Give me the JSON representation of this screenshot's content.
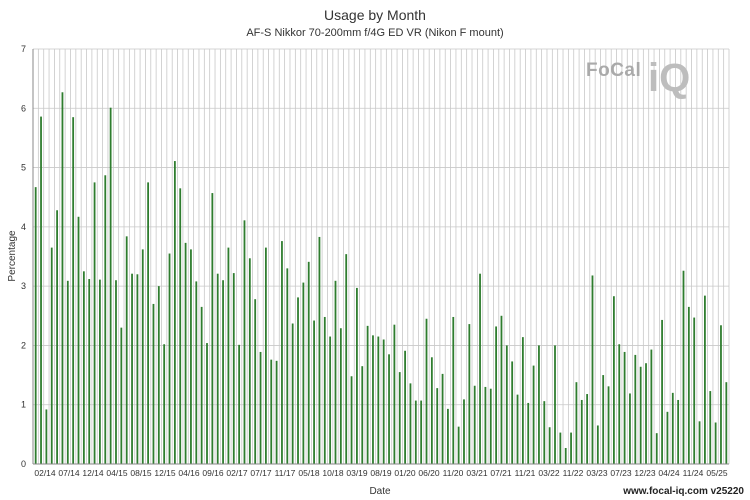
{
  "chart_data": {
    "type": "bar",
    "title": "Usage by Month",
    "subtitle": "AF-S Nikkor 70-200mm f/4G ED VR (Nikon F mount)",
    "xlabel": "Date",
    "ylabel": "Percentage",
    "ylim": [
      0,
      7
    ],
    "yticks": [
      0,
      1,
      2,
      3,
      4,
      5,
      6,
      7
    ],
    "grid": true,
    "series_color": "#2f7d2f",
    "tick_labels": [
      "02/14",
      "07/14",
      "12/14",
      "04/15",
      "08/15",
      "12/15",
      "04/16",
      "09/16",
      "02/17",
      "07/17",
      "11/17",
      "05/18",
      "10/18",
      "03/19",
      "08/19",
      "01/20",
      "06/20",
      "11/20",
      "03/21",
      "07/21",
      "11/21",
      "03/22",
      "11/22",
      "03/23",
      "07/23",
      "12/23",
      "04/24",
      "11/24",
      "05/25"
    ],
    "values": [
      4.67,
      5.86,
      0.92,
      3.65,
      4.28,
      6.27,
      3.09,
      5.85,
      4.17,
      3.25,
      3.12,
      4.75,
      3.11,
      4.87,
      6.01,
      3.1,
      2.3,
      3.84,
      3.21,
      3.2,
      3.62,
      4.75,
      2.7,
      3.0,
      2.02,
      3.55,
      5.11,
      4.65,
      3.73,
      3.62,
      3.08,
      2.65,
      2.04,
      4.57,
      3.21,
      3.1,
      3.65,
      3.22,
      2.01,
      4.11,
      3.47,
      2.78,
      1.89,
      3.65,
      1.76,
      1.74,
      3.76,
      3.3,
      2.37,
      2.81,
      3.06,
      3.41,
      2.42,
      3.83,
      2.48,
      2.15,
      3.09,
      2.29,
      3.54,
      1.48,
      2.97,
      1.65,
      2.33,
      2.17,
      2.15,
      2.1,
      1.85,
      2.35,
      1.55,
      1.91,
      1.36,
      1.07,
      1.07,
      2.45,
      1.8,
      1.28,
      1.52,
      0.93,
      2.48,
      0.63,
      1.09,
      2.36,
      1.32,
      3.21,
      1.3,
      1.27,
      2.32,
      2.5,
      2.0,
      1.73,
      1.17,
      2.14,
      1.03,
      1.66,
      2.0,
      1.06,
      0.62,
      2.0,
      0.53,
      0.27,
      0.53,
      1.38,
      1.08,
      1.18,
      3.18,
      0.65,
      1.5,
      1.31,
      2.83,
      2.02,
      1.89,
      1.19,
      1.84,
      1.64,
      1.7,
      1.93,
      0.52,
      2.43,
      0.88,
      1.2,
      1.08,
      3.26,
      2.65,
      2.47,
      0.72,
      2.84,
      1.23,
      0.7,
      2.34,
      1.38
    ]
  },
  "logo": {
    "text_left": "FoCal",
    "text_right": "iQ"
  },
  "footer": "www.focal-iq.com  v25220"
}
